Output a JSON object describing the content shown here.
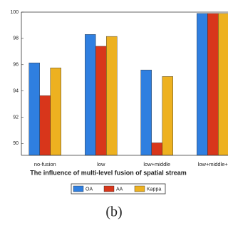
{
  "chart_data": {
    "type": "bar",
    "x_label": "The influence of multi-level fusion of spatial stream",
    "caption": "(b)",
    "categories": [
      "no-fusion",
      "low",
      "low+middle",
      "low+middle+"
    ],
    "series": [
      {
        "name": "OA",
        "color": "#2f7fe0",
        "values": [
          96.14,
          98.3,
          95.6,
          99.9
        ]
      },
      {
        "name": "AA",
        "color": "#d8361b",
        "values": [
          93.64,
          97.4,
          90.05,
          99.9
        ]
      },
      {
        "name": "Kappa",
        "color": "#edb120",
        "values": [
          95.76,
          98.15,
          95.1,
          99.9
        ]
      }
    ],
    "ylim": [
      89.1,
      100
    ],
    "yticks": [
      90,
      92,
      94,
      96,
      98,
      100
    ]
  }
}
